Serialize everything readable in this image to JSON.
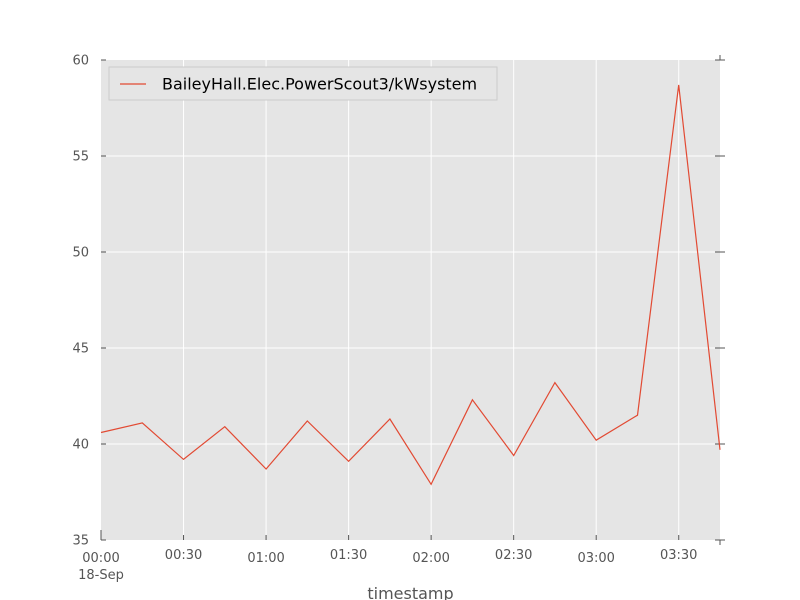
{
  "chart_data": {
    "type": "line",
    "xlabel": "timestamp",
    "ylabel": "",
    "date_label": "18-Sep",
    "x": [
      "00:00",
      "00:15",
      "00:30",
      "00:45",
      "01:00",
      "01:15",
      "01:30",
      "01:45",
      "02:00",
      "02:15",
      "02:30",
      "02:45",
      "03:00",
      "03:15",
      "03:30",
      "03:45"
    ],
    "xticks": [
      "00:00",
      "00:30",
      "01:00",
      "01:30",
      "02:00",
      "02:30",
      "03:00",
      "03:30"
    ],
    "xlim": [
      "00:00",
      "03:45"
    ],
    "ylim": [
      35,
      60
    ],
    "yticks": [
      "35",
      "40",
      "45",
      "50",
      "55",
      "60"
    ],
    "grid": true,
    "legend_position": "top-left",
    "background": "#e5e5e5",
    "series": [
      {
        "name": "BaileyHall.Elec.PowerScout3/kWsystem",
        "color": "#e24a33",
        "values": [
          40.6,
          41.1,
          39.2,
          40.9,
          38.7,
          41.2,
          39.1,
          41.3,
          37.9,
          42.3,
          39.4,
          43.2,
          40.2,
          41.5,
          58.7,
          39.7
        ]
      }
    ]
  }
}
